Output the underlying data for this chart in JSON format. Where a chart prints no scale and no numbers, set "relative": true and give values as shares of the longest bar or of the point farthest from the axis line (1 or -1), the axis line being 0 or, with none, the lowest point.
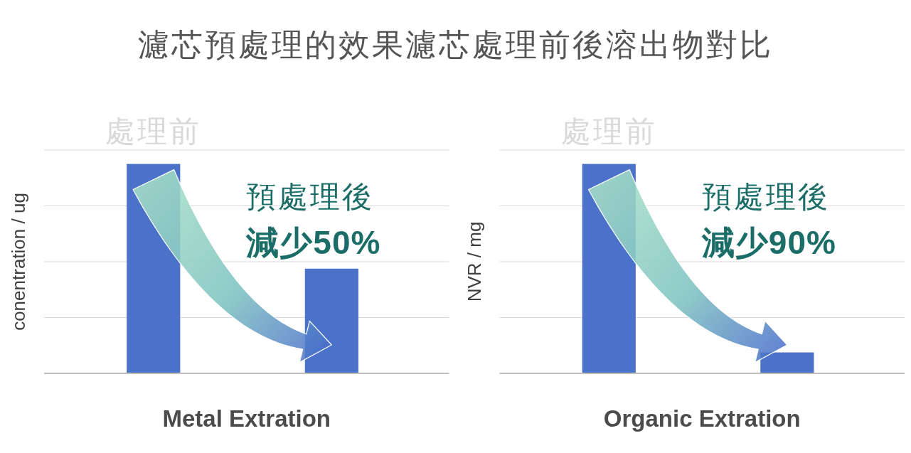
{
  "chart_data": [
    {
      "type": "bar",
      "title": "濾芯預處理的效果濾芯處理前後溶出物對比",
      "categories": [
        "處理前",
        "預處理後"
      ],
      "values": [
        1,
        0.5
      ],
      "color": "#4a72c9",
      "relative": true,
      "grid": "y",
      "xlabel": "Metal Extration",
      "ylabel": "conentration / ug",
      "annotations": [
        "減少50%"
      ]
    },
    {
      "type": "bar",
      "categories": [
        "處理前",
        "預處理後"
      ],
      "values": [
        1,
        0.1
      ],
      "color": "#4a72c9",
      "relative": true,
      "grid": "y",
      "xlabel": "Organic Extration",
      "ylabel": "NVR / mg",
      "annotations": [
        "減少90%"
      ]
    }
  ]
}
